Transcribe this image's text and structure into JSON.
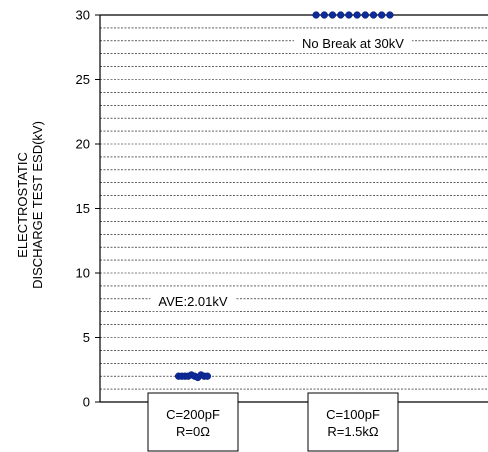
{
  "chart_data": {
    "type": "scatter",
    "ylabel_lines": [
      "ELECTROSTATIC",
      "DISCHARGE TEST ESD(kV)"
    ],
    "ylim": [
      0,
      30
    ],
    "yticks": [
      0,
      5,
      10,
      15,
      20,
      25,
      30
    ],
    "grid": true,
    "categories": [
      {
        "lines": [
          "C=200pF",
          "R=0Ω"
        ]
      },
      {
        "lines": [
          "C=100pF",
          "R=1.5kΩ"
        ]
      }
    ],
    "series": [
      {
        "category_index": 0,
        "values": [
          2.0,
          2.0,
          2.0,
          2.0,
          2.1,
          2.0,
          1.9,
          2.1,
          2.0,
          2.0
        ]
      },
      {
        "category_index": 1,
        "values": [
          30,
          30,
          30,
          30,
          30,
          30,
          30,
          30,
          30,
          30
        ]
      }
    ],
    "annotations": [
      {
        "text": "No Break at 30kV",
        "y": 27.8,
        "category_index": 1
      },
      {
        "text": "AVE:2.01kV",
        "y": 7.8,
        "category_index": 0
      }
    ],
    "marker_color": "#0d2a9a"
  }
}
